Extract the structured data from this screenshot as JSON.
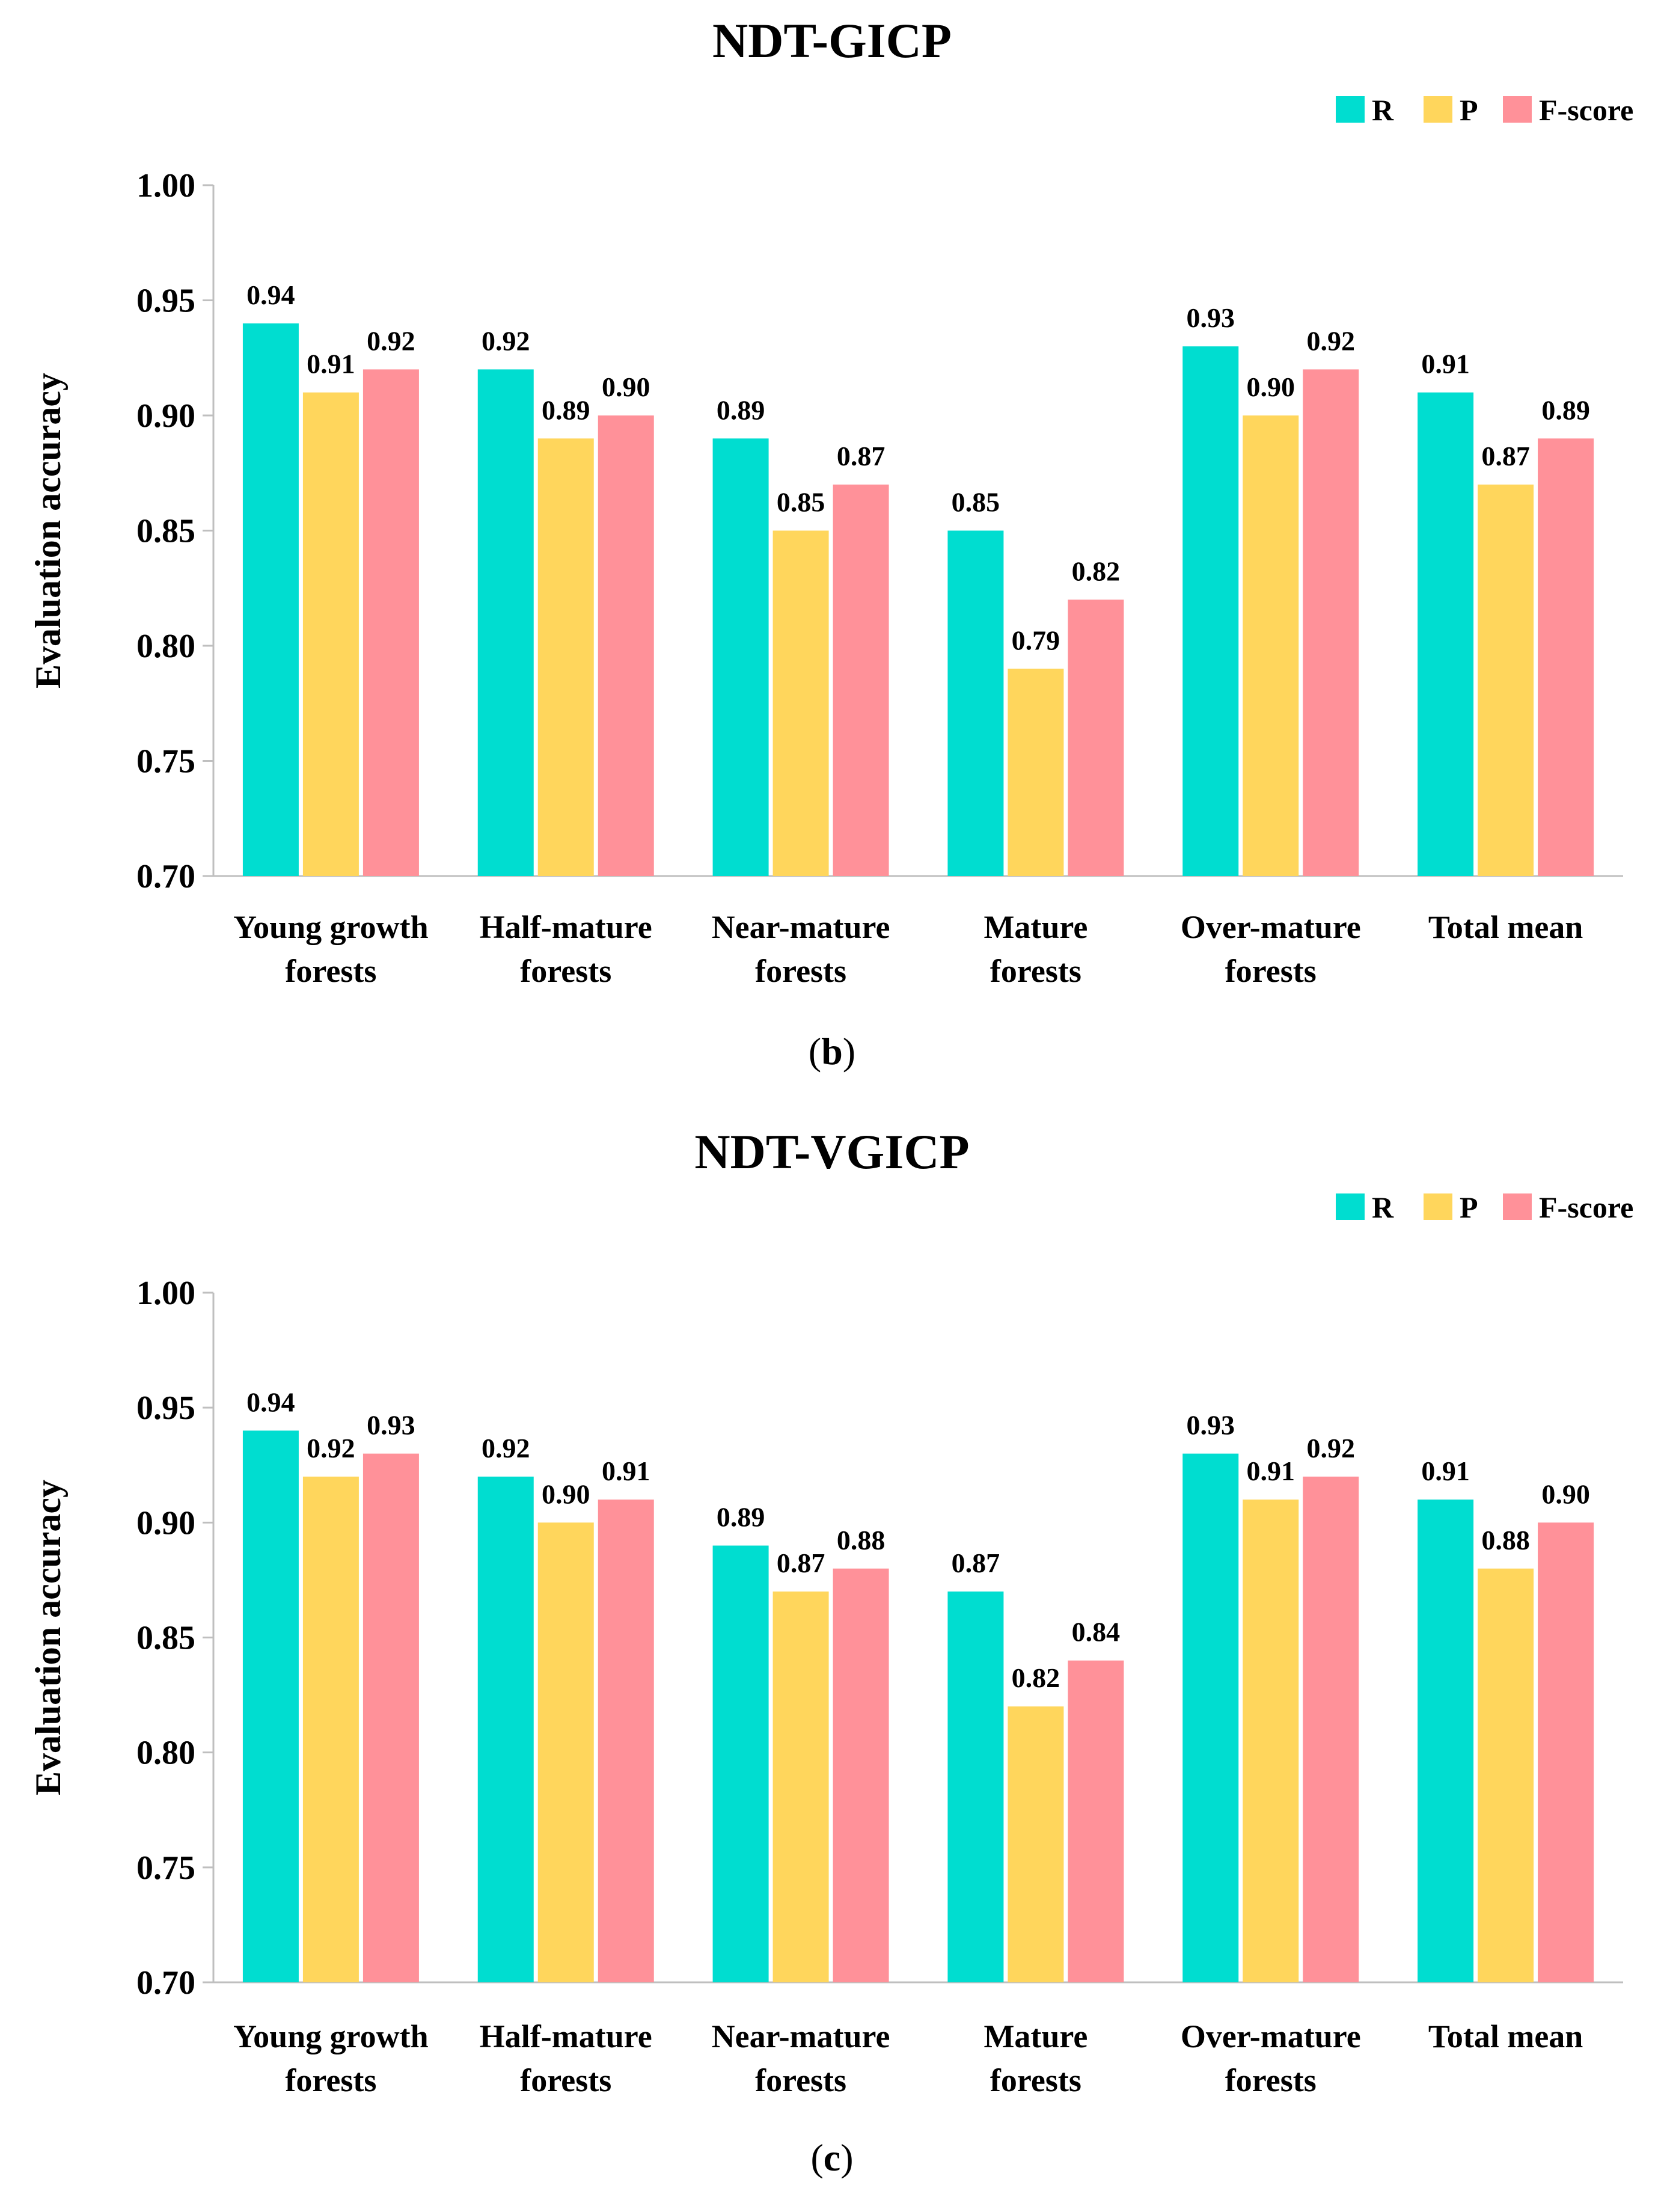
{
  "chart_data": [
    {
      "type": "bar",
      "title": "NDT-GICP",
      "caption_letter": "b",
      "ylabel": "Evaluation accuracy",
      "xlabel": "",
      "ylim": [
        0.7,
        1.0
      ],
      "yticks": [
        "0.70",
        "0.75",
        "0.80",
        "0.85",
        "0.90",
        "0.95",
        "1.00"
      ],
      "categories": [
        [
          "Young growth",
          "forests"
        ],
        [
          "Half-mature",
          "forests"
        ],
        [
          "Near-mature",
          "forests"
        ],
        [
          "Mature",
          "forests"
        ],
        [
          "Over-mature",
          "forests"
        ],
        [
          "Total mean"
        ]
      ],
      "legend_position": "top-right",
      "series": [
        {
          "name": "R",
          "color": "#00DDD0",
          "values": [
            0.94,
            0.92,
            0.89,
            0.85,
            0.93,
            0.91
          ],
          "labels": [
            "0.94",
            "0.92",
            "0.89",
            "0.85",
            "0.93",
            "0.91"
          ]
        },
        {
          "name": "P",
          "color": "#FFD65C",
          "values": [
            0.91,
            0.89,
            0.85,
            0.79,
            0.9,
            0.87
          ],
          "labels": [
            "0.91",
            "0.89",
            "0.85",
            "0.79",
            "0.90",
            "0.87"
          ]
        },
        {
          "name": "F-score",
          "color": "#FF9199",
          "values": [
            0.92,
            0.9,
            0.87,
            0.82,
            0.92,
            0.89
          ],
          "labels": [
            "0.92",
            "0.90",
            "0.87",
            "0.82",
            "0.92",
            "0.89"
          ]
        }
      ]
    },
    {
      "type": "bar",
      "title": "NDT-VGICP",
      "caption_letter": "c",
      "ylabel": "Evaluation accuracy",
      "xlabel": "",
      "ylim": [
        0.7,
        1.0
      ],
      "yticks": [
        "0.70",
        "0.75",
        "0.80",
        "0.85",
        "0.90",
        "0.95",
        "1.00"
      ],
      "categories": [
        [
          "Young growth",
          "forests"
        ],
        [
          "Half-mature",
          "forests"
        ],
        [
          "Near-mature",
          "forests"
        ],
        [
          "Mature",
          "forests"
        ],
        [
          "Over-mature",
          "forests"
        ],
        [
          "Total mean"
        ]
      ],
      "legend_position": "top-right",
      "series": [
        {
          "name": "R",
          "color": "#00DDD0",
          "values": [
            0.94,
            0.92,
            0.89,
            0.87,
            0.93,
            0.91
          ],
          "labels": [
            "0.94",
            "0.92",
            "0.89",
            "0.87",
            "0.93",
            "0.91"
          ]
        },
        {
          "name": "P",
          "color": "#FFD65C",
          "values": [
            0.92,
            0.9,
            0.87,
            0.82,
            0.91,
            0.88
          ],
          "labels": [
            "0.92",
            "0.90",
            "0.87",
            "0.82",
            "0.91",
            "0.88"
          ]
        },
        {
          "name": "F-score",
          "color": "#FF9199",
          "values": [
            0.93,
            0.91,
            0.88,
            0.84,
            0.92,
            0.9
          ],
          "labels": [
            "0.93",
            "0.91",
            "0.88",
            "0.84",
            "0.92",
            "0.90"
          ]
        }
      ]
    }
  ]
}
